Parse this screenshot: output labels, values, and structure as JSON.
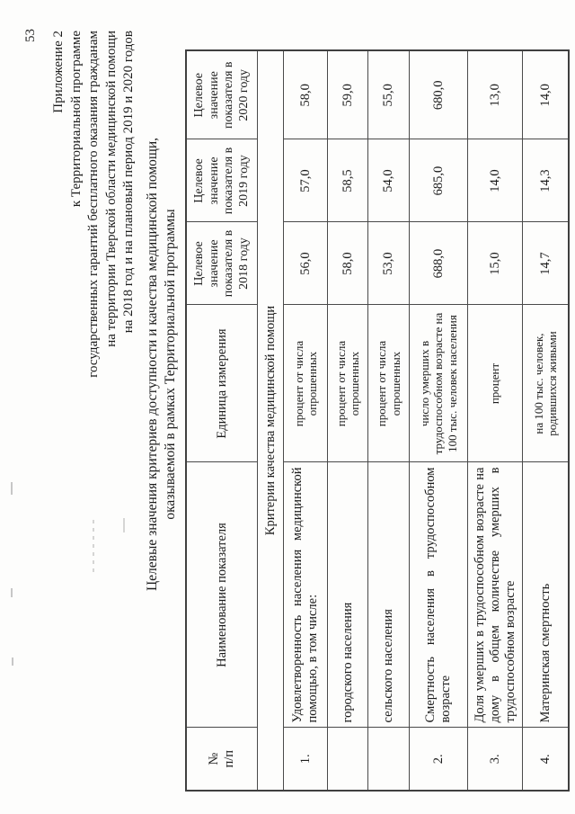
{
  "page": {
    "number": "53",
    "appendix_lines": [
      "Приложение 2",
      "к Территориальной программе",
      "государственных гарантий бесплатного оказания гражданам",
      "на территории Тверской области медицинской помощи",
      "на 2018 год и на плановый период 2019 и 2020 годов"
    ],
    "title_line1": "Целевые значения критериев доступности и качества медицинской помощи,",
    "title_line2": "оказываемой в рамках Территориальной программы"
  },
  "table": {
    "headers": {
      "num": "№\nп/п",
      "name": "Наименование показателя",
      "unit": "Единица измерения",
      "y2018": "Целевое значение показателя в 2018 году",
      "y2019": "Целевое значение показателя в 2019 году",
      "y2020": "Целевое значение показателя в 2020 году"
    },
    "section": "Критерии качества медицинской помощи",
    "rows": [
      {
        "num": "1.",
        "name": "Удовлетворенность населения медицинской помощью, в том числе:",
        "unit": "процент от числа опрошенных",
        "v2018": "56,0",
        "v2019": "57,0",
        "v2020": "58,0"
      },
      {
        "num": "",
        "name": "городского населения",
        "unit": "процент от числа опрошенных",
        "v2018": "58,0",
        "v2019": "58,5",
        "v2020": "59,0"
      },
      {
        "num": "",
        "name": "сельского населения",
        "unit": "процент от числа опрошенных",
        "v2018": "53,0",
        "v2019": "54,0",
        "v2020": "55,0"
      },
      {
        "num": "2.",
        "name": "Смертность населения в трудоспособном возрасте",
        "unit": "число умерших в трудоспособном возрасте на 100 тыс. человек населения",
        "v2018": "688,0",
        "v2019": "685,0",
        "v2020": "680,0"
      },
      {
        "num": "3.",
        "name": "Доля умерших в трудоспособном возрасте на дому в общем количестве умерших в трудоспособном возрасте",
        "unit": "процент",
        "v2018": "15,0",
        "v2019": "14,0",
        "v2020": "13,0"
      },
      {
        "num": "4.",
        "name": "Материнская смертность",
        "unit": "на 100 тыс. человек, родившихся живыми",
        "v2018": "14,7",
        "v2019": "14,3",
        "v2020": "14,0"
      }
    ]
  }
}
